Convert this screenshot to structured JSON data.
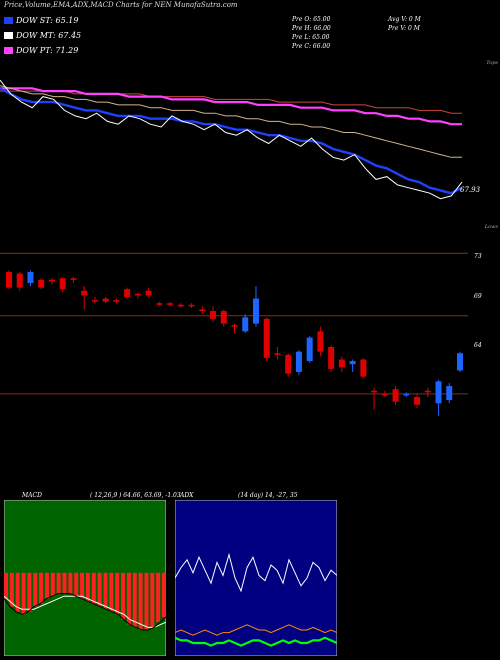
{
  "header": {
    "title": "Price,Volume,EMA,ADX,MACD Charts for NEN  MunafaSutra.com",
    "legend": [
      {
        "label": "DOW ST: 65.19",
        "color": "#1e40ff"
      },
      {
        "label": "DOW MT: 67.45",
        "color": "#ffffff"
      },
      {
        "label": "DOW PT: 71.29",
        "color": "#ff40ff"
      }
    ],
    "stats_col1": [
      "Pre  O: 65.00",
      "Pre  H: 66.00",
      "Pre  L: 65.00",
      "Pre  C: 66.00"
    ],
    "stats_col2": [
      "Avg V: 0  M",
      "Pre  V: 0  M"
    ]
  },
  "chart_data": [
    {
      "type": "line",
      "name": "price-ema",
      "top_label": "Tops",
      "last_value_label": "67.93",
      "series": [
        {
          "name": "Price",
          "color": "#ffffff",
          "values": [
            71.6,
            71.1,
            70.8,
            70.6,
            71.0,
            70.9,
            70.5,
            70.3,
            70.2,
            70.4,
            70.1,
            70.0,
            70.3,
            70.2,
            70.0,
            69.9,
            70.3,
            70.1,
            70.0,
            69.8,
            70.0,
            69.7,
            69.6,
            69.8,
            69.5,
            69.3,
            69.6,
            69.4,
            69.2,
            69.5,
            69.1,
            68.8,
            68.7,
            68.9,
            68.4,
            68.0,
            68.1,
            67.8,
            67.7,
            67.6,
            67.5,
            67.3,
            67.4,
            67.9
          ]
        },
        {
          "name": "EMA short",
          "color": "#1e40ff",
          "values": [
            71.3,
            71.1,
            70.9,
            70.8,
            70.8,
            70.8,
            70.7,
            70.6,
            70.5,
            70.5,
            70.4,
            70.3,
            70.3,
            70.3,
            70.2,
            70.2,
            70.2,
            70.1,
            70.1,
            70.0,
            70.0,
            69.9,
            69.8,
            69.8,
            69.7,
            69.6,
            69.6,
            69.5,
            69.4,
            69.4,
            69.3,
            69.1,
            69.0,
            68.9,
            68.7,
            68.5,
            68.4,
            68.2,
            68.0,
            67.9,
            67.7,
            67.6,
            67.5,
            67.7
          ]
        },
        {
          "name": "EMA mid",
          "color": "#d2b48c",
          "values": [
            71.4,
            71.3,
            71.2,
            71.1,
            71.1,
            71.0,
            71.0,
            70.9,
            70.9,
            70.8,
            70.8,
            70.7,
            70.7,
            70.7,
            70.6,
            70.6,
            70.5,
            70.5,
            70.5,
            70.4,
            70.4,
            70.3,
            70.3,
            70.2,
            70.2,
            70.1,
            70.1,
            70.0,
            70.0,
            69.9,
            69.9,
            69.8,
            69.7,
            69.7,
            69.6,
            69.5,
            69.4,
            69.3,
            69.2,
            69.1,
            69.0,
            68.9,
            68.8,
            68.8
          ]
        },
        {
          "name": "EMA long",
          "color": "#ff40ff",
          "values": [
            71.3,
            71.3,
            71.3,
            71.3,
            71.2,
            71.2,
            71.2,
            71.2,
            71.1,
            71.1,
            71.1,
            71.1,
            71.0,
            71.0,
            71.0,
            71.0,
            70.9,
            70.9,
            70.9,
            70.9,
            70.8,
            70.8,
            70.8,
            70.8,
            70.7,
            70.7,
            70.7,
            70.7,
            70.6,
            70.6,
            70.6,
            70.5,
            70.5,
            70.5,
            70.4,
            70.4,
            70.3,
            70.3,
            70.2,
            70.2,
            70.1,
            70.1,
            70.0,
            70.0
          ]
        },
        {
          "name": "EMA xlong",
          "color": "#cc4444",
          "values": [
            71.2,
            71.2,
            71.2,
            71.2,
            71.2,
            71.2,
            71.2,
            71.1,
            71.1,
            71.1,
            71.1,
            71.1,
            71.1,
            71.1,
            71.0,
            71.0,
            71.0,
            71.0,
            71.0,
            71.0,
            70.9,
            70.9,
            70.9,
            70.9,
            70.9,
            70.9,
            70.8,
            70.8,
            70.8,
            70.8,
            70.8,
            70.7,
            70.7,
            70.7,
            70.7,
            70.6,
            70.6,
            70.6,
            70.6,
            70.5,
            70.5,
            70.5,
            70.4,
            70.4
          ]
        }
      ]
    },
    {
      "type": "candlestick",
      "name": "price-candles",
      "top_label": "Lows",
      "y_tick_labels": [
        "73",
        "69",
        "64"
      ],
      "candles": [
        {
          "o": 71.8,
          "c": 70.8,
          "h": 71.9,
          "l": 70.7,
          "up": false
        },
        {
          "o": 71.7,
          "c": 70.8,
          "h": 71.8,
          "l": 70.6,
          "up": false
        },
        {
          "o": 71.8,
          "c": 71.1,
          "h": 71.9,
          "l": 70.9,
          "up": true
        },
        {
          "o": 71.3,
          "c": 70.8,
          "h": 71.4,
          "l": 70.7,
          "up": false
        },
        {
          "o": 71.3,
          "c": 71.2,
          "h": 71.4,
          "l": 71.0,
          "up": false
        },
        {
          "o": 71.4,
          "c": 70.7,
          "h": 71.5,
          "l": 70.5,
          "up": false
        },
        {
          "o": 71.4,
          "c": 71.3,
          "h": 71.5,
          "l": 71.1,
          "up": false
        },
        {
          "o": 70.6,
          "c": 70.3,
          "h": 70.9,
          "l": 69.4,
          "up": false
        },
        {
          "o": 70.0,
          "c": 69.9,
          "h": 70.2,
          "l": 69.8,
          "up": false
        },
        {
          "o": 70.1,
          "c": 69.9,
          "h": 70.2,
          "l": 69.8,
          "up": false
        },
        {
          "o": 70.0,
          "c": 69.9,
          "h": 70.1,
          "l": 69.8,
          "up": false
        },
        {
          "o": 70.7,
          "c": 70.2,
          "h": 70.8,
          "l": 70.1,
          "up": false
        },
        {
          "o": 70.4,
          "c": 70.3,
          "h": 70.5,
          "l": 70.1,
          "up": false
        },
        {
          "o": 70.6,
          "c": 70.3,
          "h": 70.8,
          "l": 70.2,
          "up": false
        },
        {
          "o": 69.8,
          "c": 69.7,
          "h": 69.9,
          "l": 69.6,
          "up": false
        },
        {
          "o": 69.8,
          "c": 69.7,
          "h": 69.9,
          "l": 69.6,
          "up": false
        },
        {
          "o": 69.7,
          "c": 69.6,
          "h": 69.8,
          "l": 69.5,
          "up": false
        },
        {
          "o": 69.7,
          "c": 69.6,
          "h": 69.8,
          "l": 69.5,
          "up": false
        },
        {
          "o": 69.4,
          "c": 69.3,
          "h": 69.6,
          "l": 69.1,
          "up": false
        },
        {
          "o": 69.3,
          "c": 68.8,
          "h": 69.6,
          "l": 68.6,
          "up": false
        },
        {
          "o": 69.3,
          "c": 68.5,
          "h": 69.4,
          "l": 68.3,
          "up": false
        },
        {
          "o": 68.4,
          "c": 68.3,
          "h": 68.5,
          "l": 67.9,
          "up": false
        },
        {
          "o": 68.9,
          "c": 68.0,
          "h": 69.1,
          "l": 67.9,
          "up": true
        },
        {
          "o": 68.5,
          "c": 70.1,
          "h": 70.9,
          "l": 68.3,
          "up": true
        },
        {
          "o": 68.8,
          "c": 66.3,
          "h": 68.9,
          "l": 66.1,
          "up": false
        },
        {
          "o": 66.6,
          "c": 66.5,
          "h": 67.0,
          "l": 66.2,
          "up": false
        },
        {
          "o": 66.5,
          "c": 65.3,
          "h": 66.6,
          "l": 65.1,
          "up": false
        },
        {
          "o": 65.4,
          "c": 66.7,
          "h": 66.8,
          "l": 65.2,
          "up": true
        },
        {
          "o": 66.1,
          "c": 67.6,
          "h": 67.7,
          "l": 66.0,
          "up": true
        },
        {
          "o": 68.0,
          "c": 66.7,
          "h": 68.3,
          "l": 66.4,
          "up": false
        },
        {
          "o": 67.0,
          "c": 65.6,
          "h": 67.1,
          "l": 65.4,
          "up": false
        },
        {
          "o": 66.2,
          "c": 65.7,
          "h": 66.4,
          "l": 65.4,
          "up": false
        },
        {
          "o": 66.1,
          "c": 65.9,
          "h": 66.2,
          "l": 65.4,
          "up": true
        },
        {
          "o": 66.2,
          "c": 65.1,
          "h": 66.3,
          "l": 65.0,
          "up": false
        },
        {
          "o": 64.2,
          "c": 64.1,
          "h": 64.4,
          "l": 63.0,
          "up": false
        },
        {
          "o": 64.0,
          "c": 63.9,
          "h": 64.2,
          "l": 63.8,
          "up": false
        },
        {
          "o": 64.3,
          "c": 63.5,
          "h": 64.5,
          "l": 63.3,
          "up": false
        },
        {
          "o": 64.0,
          "c": 63.9,
          "h": 64.1,
          "l": 63.8,
          "up": true
        },
        {
          "o": 63.8,
          "c": 63.3,
          "h": 64.0,
          "l": 63.1,
          "up": false
        },
        {
          "o": 64.2,
          "c": 64.1,
          "h": 64.4,
          "l": 63.8,
          "up": false
        },
        {
          "o": 63.4,
          "c": 64.8,
          "h": 64.9,
          "l": 62.6,
          "up": true
        },
        {
          "o": 63.6,
          "c": 64.5,
          "h": 64.7,
          "l": 63.4,
          "up": true
        },
        {
          "o": 65.5,
          "c": 66.6,
          "h": 66.7,
          "l": 65.4,
          "up": true
        }
      ]
    },
    {
      "type": "line",
      "name": "macd",
      "label": "MACD",
      "params": "( 12,26,9 ) 64.66,  63.69,  -1.03",
      "series": [
        {
          "name": "MACD",
          "values": [
            -1.0,
            -1.3,
            -1.5,
            -1.6,
            -1.5,
            -1.3,
            -1.2,
            -1.0,
            -0.9,
            -0.8,
            -0.8,
            -0.8,
            -0.9,
            -1.0,
            -1.1,
            -1.2,
            -1.3,
            -1.4,
            -1.5,
            -1.6,
            -1.8,
            -2.0,
            -2.1,
            -2.2,
            -2.2,
            -2.1,
            -1.9,
            -1.7
          ]
        },
        {
          "name": "Signal",
          "values": [
            -0.9,
            -1.1,
            -1.3,
            -1.4,
            -1.4,
            -1.4,
            -1.3,
            -1.2,
            -1.1,
            -1.0,
            -0.9,
            -0.9,
            -0.9,
            -0.9,
            -1.0,
            -1.1,
            -1.2,
            -1.3,
            -1.4,
            -1.5,
            -1.6,
            -1.8,
            -1.9,
            -2.0,
            -2.1,
            -2.1,
            -2.0,
            -1.9
          ]
        }
      ]
    },
    {
      "type": "line",
      "name": "adx",
      "label": "ADX",
      "params": "(14 day)  14,  -27,  35",
      "series": [
        {
          "name": "DI white",
          "color": "#ffffff",
          "values": [
            30,
            34,
            37,
            32,
            38,
            33,
            28,
            36,
            31,
            39,
            30,
            25,
            34,
            38,
            31,
            29,
            35,
            33,
            28,
            37,
            32,
            27,
            30,
            36,
            34,
            29,
            33,
            31
          ]
        },
        {
          "name": "DI orange",
          "color": "#ff8c00",
          "values": [
            9,
            10,
            9,
            8,
            9,
            10,
            9,
            8,
            9,
            9,
            10,
            11,
            12,
            11,
            10,
            10,
            9,
            10,
            11,
            12,
            11,
            10,
            10,
            11,
            10,
            9,
            10,
            9
          ]
        },
        {
          "name": "ADX green",
          "color": "#00ff00",
          "values": [
            7,
            6,
            6,
            5,
            5,
            5,
            4,
            5,
            5,
            6,
            5,
            4,
            5,
            6,
            6,
            5,
            4,
            5,
            6,
            5,
            6,
            5,
            5,
            6,
            6,
            7,
            6,
            5
          ]
        }
      ]
    }
  ]
}
